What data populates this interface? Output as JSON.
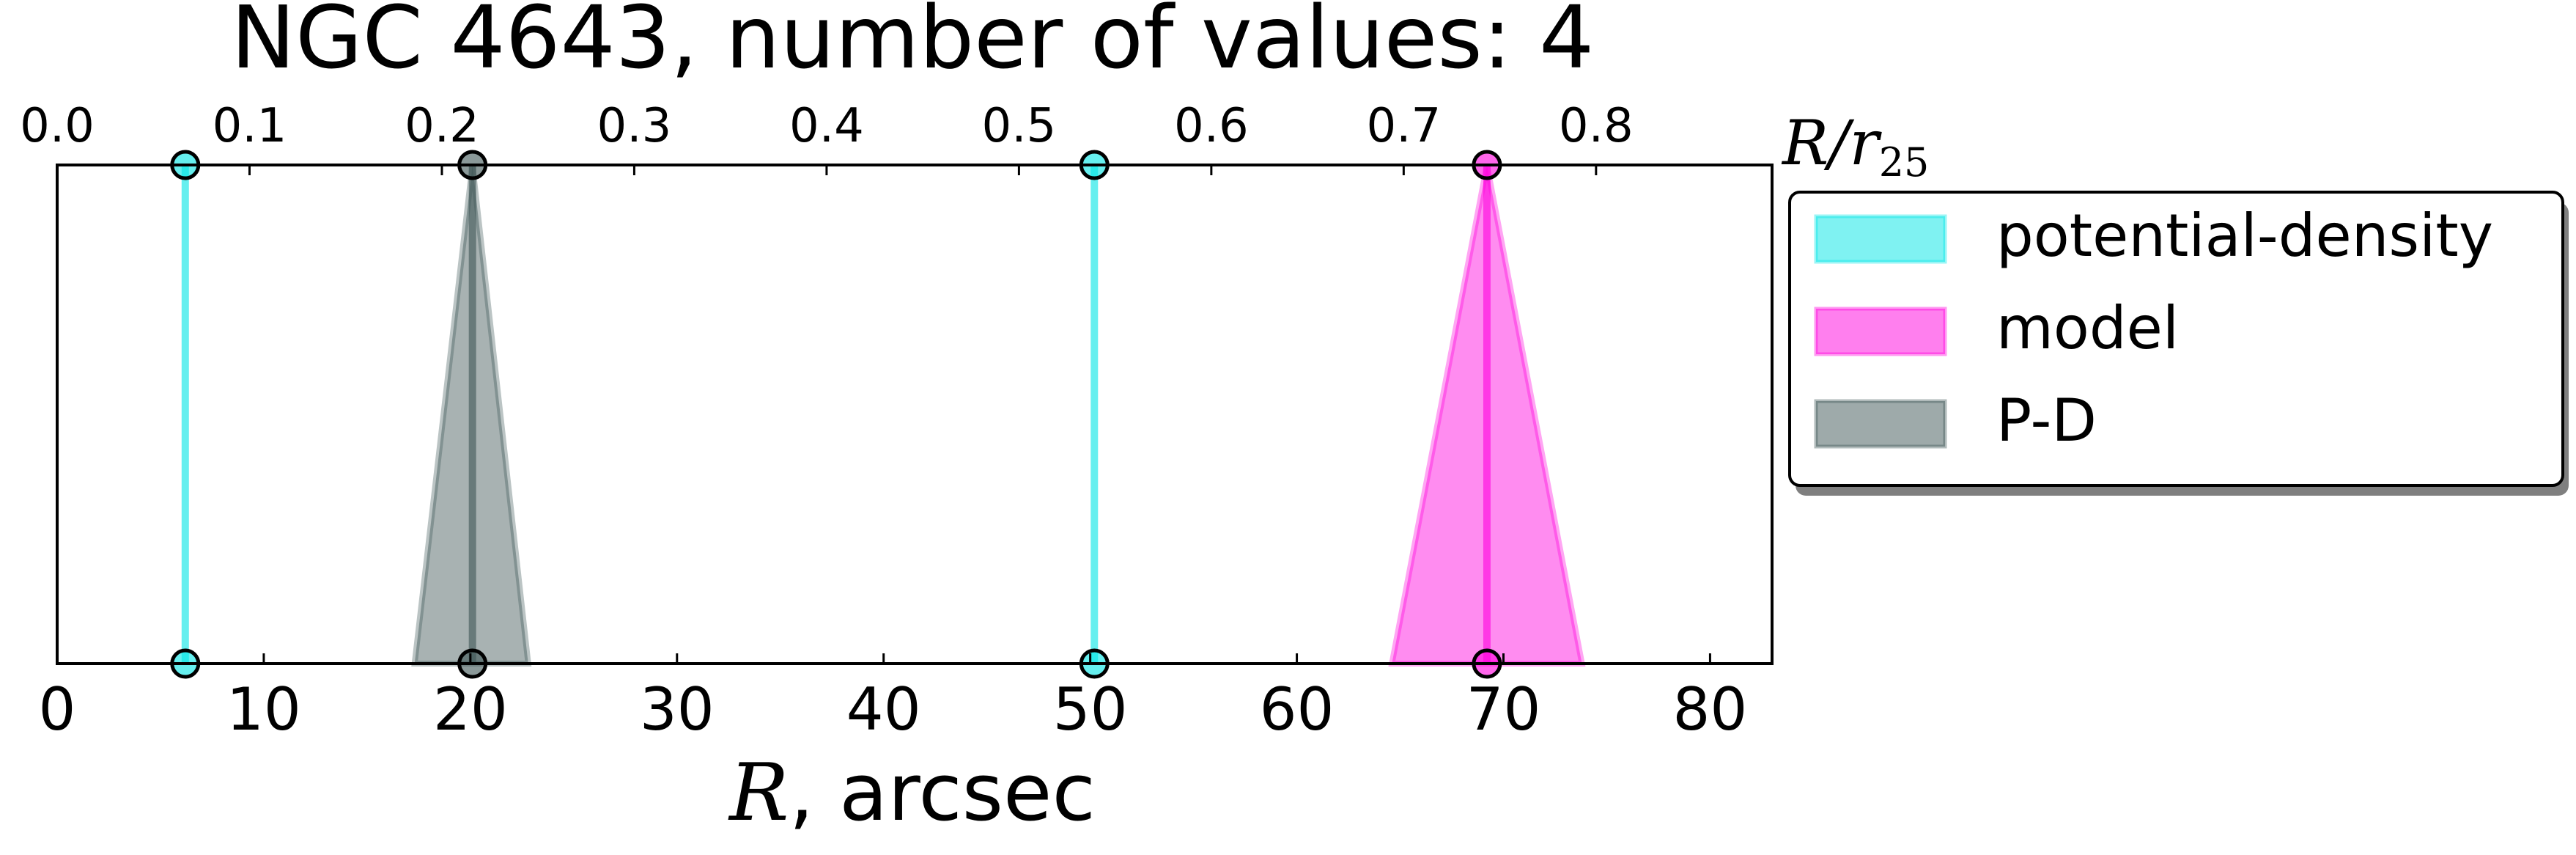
{
  "chart_data": {
    "type": "line",
    "title": "NGC 4643, number of values: 4",
    "xlabel_var": "R",
    "xlabel_unit": ", arcsec",
    "xlim": [
      0,
      83
    ],
    "xticks": [
      0,
      10,
      20,
      30,
      40,
      50,
      60,
      70,
      80
    ],
    "top_axis": {
      "label_var": "R/r",
      "label_sub": "25",
      "scale_factor": 0.010741,
      "ticks": [
        0.0,
        0.1,
        0.2,
        0.3,
        0.4,
        0.5,
        0.6,
        0.7,
        0.8
      ]
    },
    "legend_position": "outside-right-top",
    "series": [
      {
        "name": "potential-density",
        "color": "#00E5E5",
        "values": [
          {
            "r": 6.2,
            "err_low": 6.2,
            "err_high": 6.2
          },
          {
            "r": 50.2,
            "err_low": 50.2,
            "err_high": 50.2
          }
        ]
      },
      {
        "name": "model",
        "color": "#FF00DD",
        "values": [
          {
            "r": 69.2,
            "err_low": 64.6,
            "err_high": 73.8
          }
        ]
      },
      {
        "name": "P-D",
        "color": "#3D5555",
        "values": [
          {
            "r": 20.1,
            "err_low": 17.3,
            "err_high": 22.8
          }
        ]
      }
    ]
  }
}
